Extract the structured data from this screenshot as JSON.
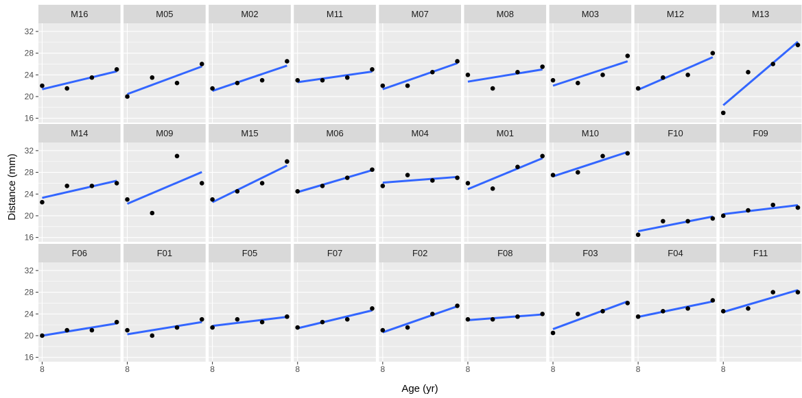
{
  "chart_data": {
    "type": "scatter",
    "subtype": "faceted-scatter-with-linear-fit",
    "xlabel": "Age (yr)",
    "ylabel": "Distance (mm)",
    "x_ticks": [
      8
    ],
    "x_tick_labels": [
      "8"
    ],
    "xlim": [
      7.7,
      14.3
    ],
    "y_ticks": [
      16,
      20,
      24,
      28,
      32
    ],
    "y_tick_labels": [
      "16",
      "20",
      "24",
      "28",
      "32"
    ],
    "ylim": [
      15.2,
      33.5
    ],
    "facet_columns": 9,
    "colors": {
      "panel_bg": "#ebebeb",
      "strip_bg": "#d9d9d9",
      "grid": "#ffffff",
      "points": "#000000",
      "fit_line": "#3366ff"
    },
    "panels": [
      {
        "label": "M16",
        "x": [
          8,
          10,
          12,
          14
        ],
        "y": [
          22,
          21.5,
          23.5,
          25
        ]
      },
      {
        "label": "M05",
        "x": [
          8,
          10,
          12,
          14
        ],
        "y": [
          20,
          23.5,
          22.5,
          26
        ]
      },
      {
        "label": "M02",
        "x": [
          8,
          10,
          12,
          14
        ],
        "y": [
          21.5,
          22.5,
          23,
          26.5
        ]
      },
      {
        "label": "M11",
        "x": [
          8,
          10,
          12,
          14
        ],
        "y": [
          23,
          23,
          23.5,
          25
        ]
      },
      {
        "label": "M07",
        "x": [
          8,
          10,
          12,
          14
        ],
        "y": [
          22,
          22,
          24.5,
          26.5
        ]
      },
      {
        "label": "M08",
        "x": [
          8,
          10,
          12,
          14
        ],
        "y": [
          24,
          21.5,
          24.5,
          25.5
        ]
      },
      {
        "label": "M03",
        "x": [
          8,
          10,
          12,
          14
        ],
        "y": [
          23,
          22.5,
          24,
          27.5
        ]
      },
      {
        "label": "M12",
        "x": [
          8,
          10,
          12,
          14
        ],
        "y": [
          21.5,
          23.5,
          24,
          28
        ]
      },
      {
        "label": "M13",
        "x": [
          8,
          10,
          12,
          14
        ],
        "y": [
          17,
          24.5,
          26,
          29.5
        ]
      },
      {
        "label": "M14",
        "x": [
          8,
          10,
          12,
          14
        ],
        "y": [
          22.5,
          25.5,
          25.5,
          26
        ]
      },
      {
        "label": "M09",
        "x": [
          8,
          10,
          12,
          14
        ],
        "y": [
          23,
          20.5,
          31,
          26
        ]
      },
      {
        "label": "M15",
        "x": [
          8,
          10,
          12,
          14
        ],
        "y": [
          23,
          24.5,
          26,
          30
        ]
      },
      {
        "label": "M06",
        "x": [
          8,
          10,
          12,
          14
        ],
        "y": [
          24.5,
          25.5,
          27,
          28.5
        ]
      },
      {
        "label": "M04",
        "x": [
          8,
          10,
          12,
          14
        ],
        "y": [
          25.5,
          27.5,
          26.5,
          27
        ]
      },
      {
        "label": "M01",
        "x": [
          8,
          10,
          12,
          14
        ],
        "y": [
          26,
          25,
          29,
          31
        ]
      },
      {
        "label": "M10",
        "x": [
          8,
          10,
          12,
          14
        ],
        "y": [
          27.5,
          28,
          31,
          31.5
        ]
      },
      {
        "label": "F10",
        "x": [
          8,
          10,
          12,
          14
        ],
        "y": [
          16.5,
          19,
          19,
          19.5
        ]
      },
      {
        "label": "F09",
        "x": [
          8,
          10,
          12,
          14
        ],
        "y": [
          20,
          21,
          22,
          21.5
        ]
      },
      {
        "label": "F06",
        "x": [
          8,
          10,
          12,
          14
        ],
        "y": [
          20,
          21,
          21,
          22.5
        ]
      },
      {
        "label": "F01",
        "x": [
          8,
          10,
          12,
          14
        ],
        "y": [
          21,
          20,
          21.5,
          23
        ]
      },
      {
        "label": "F05",
        "x": [
          8,
          10,
          12,
          14
        ],
        "y": [
          21.5,
          23,
          22.5,
          23.5
        ]
      },
      {
        "label": "F07",
        "x": [
          8,
          10,
          12,
          14
        ],
        "y": [
          21.5,
          22.5,
          23,
          25
        ]
      },
      {
        "label": "F02",
        "x": [
          8,
          10,
          12,
          14
        ],
        "y": [
          21,
          21.5,
          24,
          25.5
        ]
      },
      {
        "label": "F08",
        "x": [
          8,
          10,
          12,
          14
        ],
        "y": [
          23,
          23,
          23.5,
          24
        ]
      },
      {
        "label": "F03",
        "x": [
          8,
          10,
          12,
          14
        ],
        "y": [
          20.5,
          24,
          24.5,
          26
        ]
      },
      {
        "label": "F04",
        "x": [
          8,
          10,
          12,
          14
        ],
        "y": [
          23.5,
          24.5,
          25,
          26.5
        ]
      },
      {
        "label": "F11",
        "x": [
          8,
          10,
          12,
          14
        ],
        "y": [
          24.5,
          25,
          28,
          28
        ]
      }
    ]
  }
}
